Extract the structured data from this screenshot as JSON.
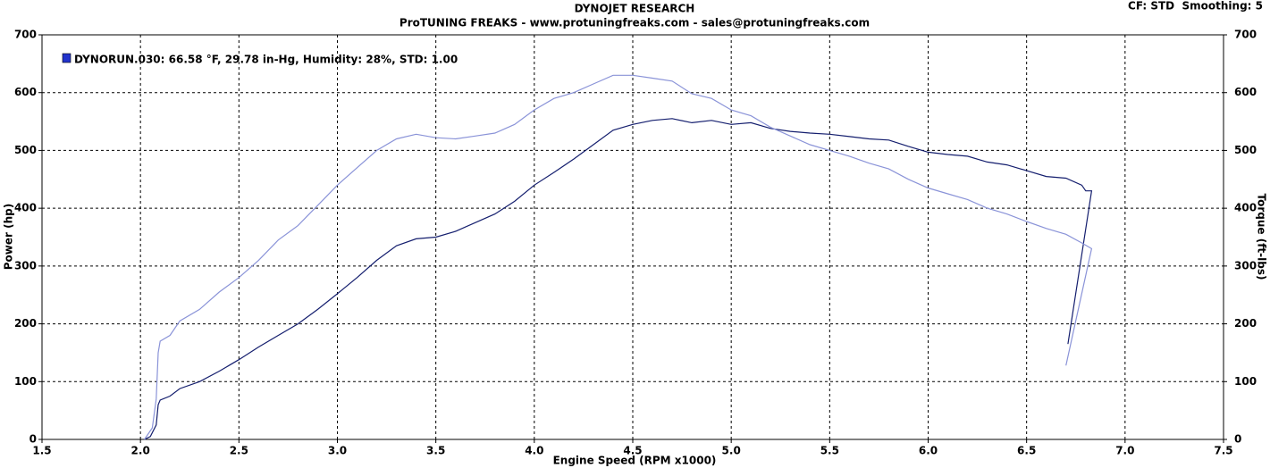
{
  "chart_data": {
    "type": "line",
    "title": "DYNOJET RESEARCH",
    "subtitle": "ProTUNING FREAKS - www.protuningfreaks.com - sales@protuningfreaks.com",
    "note": "CF: STD  Smoothing: 5",
    "legend": "DYNORUN.030: 66.58 °F, 29.78 in-Hg, Humidity: 28%, STD: 1.00",
    "legend_color": "#2233cc",
    "x_label": "Engine Speed (RPM x1000)",
    "y_label": "Power (hp)",
    "y2_label": "Torque (ft-lbs)",
    "xlim": [
      1.5,
      7.5
    ],
    "xticks": [
      1.5,
      {
        "value": 2,
        "label": "2.0"
      },
      2.5,
      {
        "value": 3,
        "label": "3.0"
      },
      3.5,
      {
        "value": 4,
        "label": "4.0"
      },
      4.5,
      {
        "value": 5,
        "label": "5.0"
      },
      5.5,
      {
        "value": 6,
        "label": "6.0"
      },
      6.5,
      {
        "value": 7,
        "label": "7.0"
      },
      7.5
    ],
    "ylim": [
      0,
      700
    ],
    "yticks": [
      0,
      100,
      200,
      300,
      400,
      500,
      600,
      700
    ],
    "y2lim": [
      0,
      700
    ],
    "y2ticks": [
      0,
      100,
      200,
      300,
      400,
      500,
      600,
      700
    ],
    "grid": true,
    "series": [
      {
        "color": "#141e6e",
        "axis": "y",
        "x": [
          2.02,
          2.05,
          2.08,
          2.09,
          2.1,
          2.15,
          2.2,
          2.3,
          2.4,
          2.5,
          2.6,
          2.7,
          2.8,
          2.9,
          3.0,
          3.1,
          3.2,
          3.3,
          3.4,
          3.5,
          3.6,
          3.7,
          3.8,
          3.9,
          4.0,
          4.1,
          4.2,
          4.3,
          4.4,
          4.5,
          4.6,
          4.7,
          4.8,
          4.9,
          5.0,
          5.1,
          5.2,
          5.3,
          5.4,
          5.5,
          5.6,
          5.7,
          5.8,
          5.9,
          6.0,
          6.1,
          6.2,
          6.3,
          6.4,
          6.5,
          6.6,
          6.7,
          6.78,
          6.8,
          6.83,
          6.71
        ],
        "values": [
          0,
          5,
          25,
          60,
          68,
          75,
          88,
          100,
          118,
          138,
          160,
          180,
          200,
          225,
          252,
          280,
          310,
          335,
          347,
          350,
          360,
          375,
          390,
          412,
          440,
          462,
          485,
          510,
          535,
          545,
          552,
          555,
          548,
          552,
          545,
          548,
          538,
          533,
          530,
          528,
          524,
          520,
          518,
          507,
          497,
          493,
          490,
          480,
          475,
          465,
          455,
          452,
          440,
          430,
          430,
          165
        ]
      },
      {
        "color": "#8a93d8",
        "axis": "y2",
        "x": [
          2.02,
          2.06,
          2.08,
          2.09,
          2.1,
          2.15,
          2.2,
          2.3,
          2.4,
          2.5,
          2.6,
          2.7,
          2.8,
          2.9,
          3.0,
          3.1,
          3.2,
          3.3,
          3.4,
          3.5,
          3.6,
          3.7,
          3.8,
          3.9,
          4.0,
          4.1,
          4.2,
          4.3,
          4.4,
          4.5,
          4.6,
          4.7,
          4.8,
          4.9,
          5.0,
          5.1,
          5.2,
          5.3,
          5.4,
          5.5,
          5.6,
          5.7,
          5.8,
          5.9,
          6.0,
          6.1,
          6.2,
          6.3,
          6.4,
          6.5,
          6.6,
          6.7,
          6.78,
          6.83,
          6.7
        ],
        "values": [
          0,
          20,
          70,
          150,
          170,
          180,
          205,
          225,
          255,
          280,
          310,
          345,
          370,
          405,
          440,
          470,
          500,
          520,
          528,
          522,
          520,
          525,
          530,
          545,
          570,
          590,
          600,
          615,
          630,
          630,
          625,
          620,
          598,
          590,
          570,
          560,
          540,
          525,
          510,
          500,
          490,
          478,
          468,
          450,
          435,
          425,
          415,
          400,
          390,
          377,
          365,
          355,
          340,
          330,
          128
        ]
      }
    ]
  }
}
